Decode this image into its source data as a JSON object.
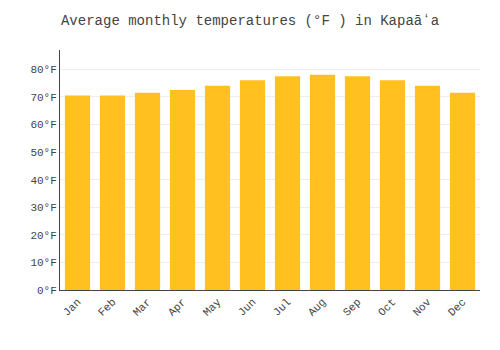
{
  "chart_data": {
    "type": "bar",
    "title": "Average monthly temperatures (°F ) in Kapaāʻa",
    "categories": [
      "Jan",
      "Feb",
      "Mar",
      "Apr",
      "May",
      "Jun",
      "Jul",
      "Aug",
      "Sep",
      "Oct",
      "Nov",
      "Dec"
    ],
    "values": [
      70.5,
      70.5,
      71.5,
      72.5,
      74.0,
      76.0,
      77.5,
      78.0,
      77.5,
      76.0,
      74.0,
      71.5
    ],
    "color": "#FFC020",
    "ylim": [
      0,
      87
    ],
    "yticks": [
      {
        "value": 0,
        "label": "0°F"
      },
      {
        "value": 10,
        "label": "10°F"
      },
      {
        "value": 20,
        "label": "20°F"
      },
      {
        "value": 30,
        "label": "30°F"
      },
      {
        "value": 40,
        "label": "40°F"
      },
      {
        "value": 50,
        "label": "50°F"
      },
      {
        "value": 60,
        "label": "60°F"
      },
      {
        "value": 70,
        "label": "70°F"
      },
      {
        "value": 80,
        "label": "80°F"
      }
    ],
    "grid": true
  }
}
